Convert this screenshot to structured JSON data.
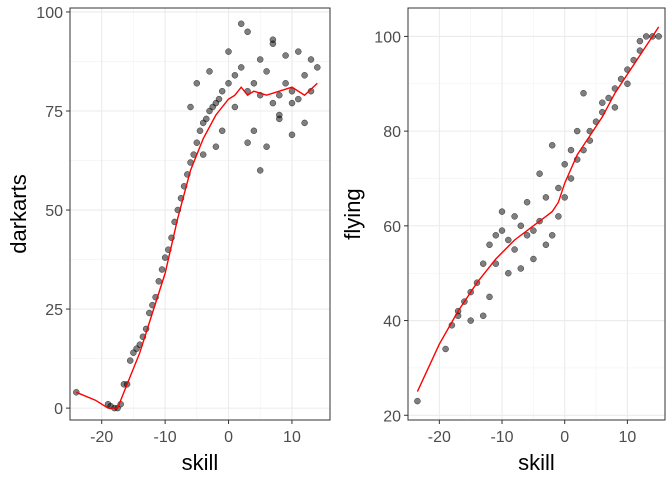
{
  "chart_data": [
    {
      "type": "scatter",
      "title": "",
      "xlabel": "skill",
      "ylabel": "darkarts",
      "xlim": [
        -25,
        16
      ],
      "ylim": [
        -3,
        101
      ],
      "x_ticks": [
        "-20",
        "-10",
        "0",
        "10"
      ],
      "y_ticks": [
        "0",
        "25",
        "50",
        "75",
        "100"
      ],
      "x_tick_values": [
        -20,
        -10,
        0,
        10
      ],
      "y_tick_values": [
        0,
        25,
        50,
        75,
        100
      ],
      "grid": true,
      "point_color": "#000000",
      "point_alpha": 0.5,
      "smooth_color": "#ff0000",
      "points": [
        [
          -24,
          4
        ],
        [
          -19,
          1
        ],
        [
          -18.6,
          0.5
        ],
        [
          -18,
          0
        ],
        [
          -17.5,
          0
        ],
        [
          -17,
          1
        ],
        [
          -16.5,
          6
        ],
        [
          -16,
          6
        ],
        [
          -15.5,
          12
        ],
        [
          -15,
          14
        ],
        [
          -14.5,
          15
        ],
        [
          -14,
          16
        ],
        [
          -13.5,
          18
        ],
        [
          -13,
          20
        ],
        [
          -12.5,
          24
        ],
        [
          -12,
          26
        ],
        [
          -11.5,
          28
        ],
        [
          -11,
          32
        ],
        [
          -10.5,
          35
        ],
        [
          -10,
          38
        ],
        [
          -9.5,
          40
        ],
        [
          -9,
          43
        ],
        [
          -8.5,
          47
        ],
        [
          -8,
          50
        ],
        [
          -7.5,
          53
        ],
        [
          -7,
          56
        ],
        [
          -6.5,
          59
        ],
        [
          -6,
          62
        ],
        [
          -5.5,
          64
        ],
        [
          -5,
          67
        ],
        [
          -4.5,
          70
        ],
        [
          -4,
          72
        ],
        [
          -3.5,
          73
        ],
        [
          -3,
          75
        ],
        [
          -2.5,
          76
        ],
        [
          -2,
          77
        ],
        [
          -1.5,
          78
        ],
        [
          -1,
          80
        ],
        [
          0,
          82
        ],
        [
          1,
          84
        ],
        [
          2,
          86
        ],
        [
          3,
          80
        ],
        [
          4,
          82
        ],
        [
          5,
          79
        ],
        [
          6,
          85
        ],
        [
          7,
          77
        ],
        [
          8,
          79
        ],
        [
          9,
          82
        ],
        [
          10,
          80
        ],
        [
          11,
          78
        ],
        [
          12,
          84
        ],
        [
          13,
          80
        ],
        [
          14,
          86
        ],
        [
          -3,
          85
        ],
        [
          -1,
          70
        ],
        [
          0,
          90
        ],
        [
          2,
          97
        ],
        [
          3,
          95
        ],
        [
          4,
          70
        ],
        [
          5,
          88
        ],
        [
          6,
          66
        ],
        [
          7,
          92
        ],
        [
          8,
          74
        ],
        [
          9,
          89
        ],
        [
          10,
          69
        ],
        [
          11,
          90
        ],
        [
          12,
          72
        ],
        [
          13,
          88
        ],
        [
          -5,
          82
        ],
        [
          -6,
          76
        ],
        [
          -4,
          64
        ],
        [
          1,
          76
        ],
        [
          5,
          60
        ],
        [
          7,
          93
        ],
        [
          -2,
          66
        ],
        [
          3,
          67
        ],
        [
          8,
          73
        ],
        [
          10,
          77
        ]
      ],
      "smooth": [
        [
          -24,
          4
        ],
        [
          -21,
          2
        ],
        [
          -19,
          0
        ],
        [
          -17.5,
          0
        ],
        [
          -16,
          6
        ],
        [
          -14,
          14
        ],
        [
          -12,
          24
        ],
        [
          -10,
          34
        ],
        [
          -8,
          48
        ],
        [
          -6,
          60
        ],
        [
          -4,
          68
        ],
        [
          -2,
          74
        ],
        [
          0,
          78
        ],
        [
          1,
          79
        ],
        [
          2,
          81
        ],
        [
          3,
          79
        ],
        [
          4,
          80
        ],
        [
          6,
          79
        ],
        [
          8,
          80
        ],
        [
          10,
          81
        ],
        [
          12,
          79
        ],
        [
          14,
          82
        ]
      ]
    },
    {
      "type": "scatter",
      "title": "",
      "xlabel": "skill",
      "ylabel": "flying",
      "xlim": [
        -25,
        16
      ],
      "ylim": [
        19,
        106
      ],
      "x_ticks": [
        "-20",
        "-10",
        "0",
        "10"
      ],
      "y_ticks": [
        "20",
        "40",
        "60",
        "80",
        "100"
      ],
      "x_tick_values": [
        -20,
        -10,
        0,
        10
      ],
      "y_tick_values": [
        20,
        40,
        60,
        80,
        100
      ],
      "grid": true,
      "point_color": "#000000",
      "point_alpha": 0.5,
      "smooth_color": "#ff0000",
      "points": [
        [
          -23.5,
          23
        ],
        [
          -19,
          34
        ],
        [
          -18,
          39
        ],
        [
          -17,
          42
        ],
        [
          -16,
          44
        ],
        [
          -15,
          40
        ],
        [
          -14,
          48
        ],
        [
          -13,
          41
        ],
        [
          -12,
          56
        ],
        [
          -11,
          52
        ],
        [
          -10,
          59
        ],
        [
          -9,
          50
        ],
        [
          -8,
          62
        ],
        [
          -7,
          51
        ],
        [
          -6,
          65
        ],
        [
          -5,
          53
        ],
        [
          -4,
          71
        ],
        [
          -3,
          56
        ],
        [
          -2,
          77
        ],
        [
          -1,
          62
        ],
        [
          0,
          73
        ],
        [
          0,
          66
        ],
        [
          1,
          70
        ],
        [
          2,
          74
        ],
        [
          3,
          88
        ],
        [
          3,
          76
        ],
        [
          4,
          80
        ],
        [
          5,
          82
        ],
        [
          6,
          84
        ],
        [
          7,
          87
        ],
        [
          8,
          89
        ],
        [
          9,
          91
        ],
        [
          10,
          93
        ],
        [
          11,
          95
        ],
        [
          12,
          97
        ],
        [
          13,
          100
        ],
        [
          14,
          100
        ],
        [
          15,
          100
        ],
        [
          -12,
          45
        ],
        [
          -10,
          63
        ],
        [
          -8,
          55
        ],
        [
          -6,
          58
        ],
        [
          -4,
          61
        ],
        [
          -2,
          58
        ],
        [
          -1,
          68
        ],
        [
          1,
          76
        ],
        [
          2,
          80
        ],
        [
          4,
          78
        ],
        [
          6,
          86
        ],
        [
          8,
          85
        ],
        [
          10,
          90
        ],
        [
          12,
          99
        ],
        [
          -15,
          46
        ],
        [
          -11,
          58
        ],
        [
          -7,
          60
        ],
        [
          -3,
          66
        ],
        [
          -5,
          59
        ],
        [
          -9,
          57
        ],
        [
          -13,
          52
        ],
        [
          -17,
          41
        ]
      ],
      "smooth": [
        [
          -23.5,
          25
        ],
        [
          -20,
          35
        ],
        [
          -17,
          42
        ],
        [
          -14,
          48
        ],
        [
          -11,
          53
        ],
        [
          -8,
          57
        ],
        [
          -5,
          60
        ],
        [
          -3,
          62
        ],
        [
          -2,
          63
        ],
        [
          -1,
          65
        ],
        [
          0,
          69
        ],
        [
          2,
          75
        ],
        [
          4,
          79
        ],
        [
          6,
          83
        ],
        [
          8,
          88
        ],
        [
          10,
          92
        ],
        [
          12,
          96
        ],
        [
          14,
          100
        ],
        [
          15,
          102
        ]
      ]
    }
  ]
}
